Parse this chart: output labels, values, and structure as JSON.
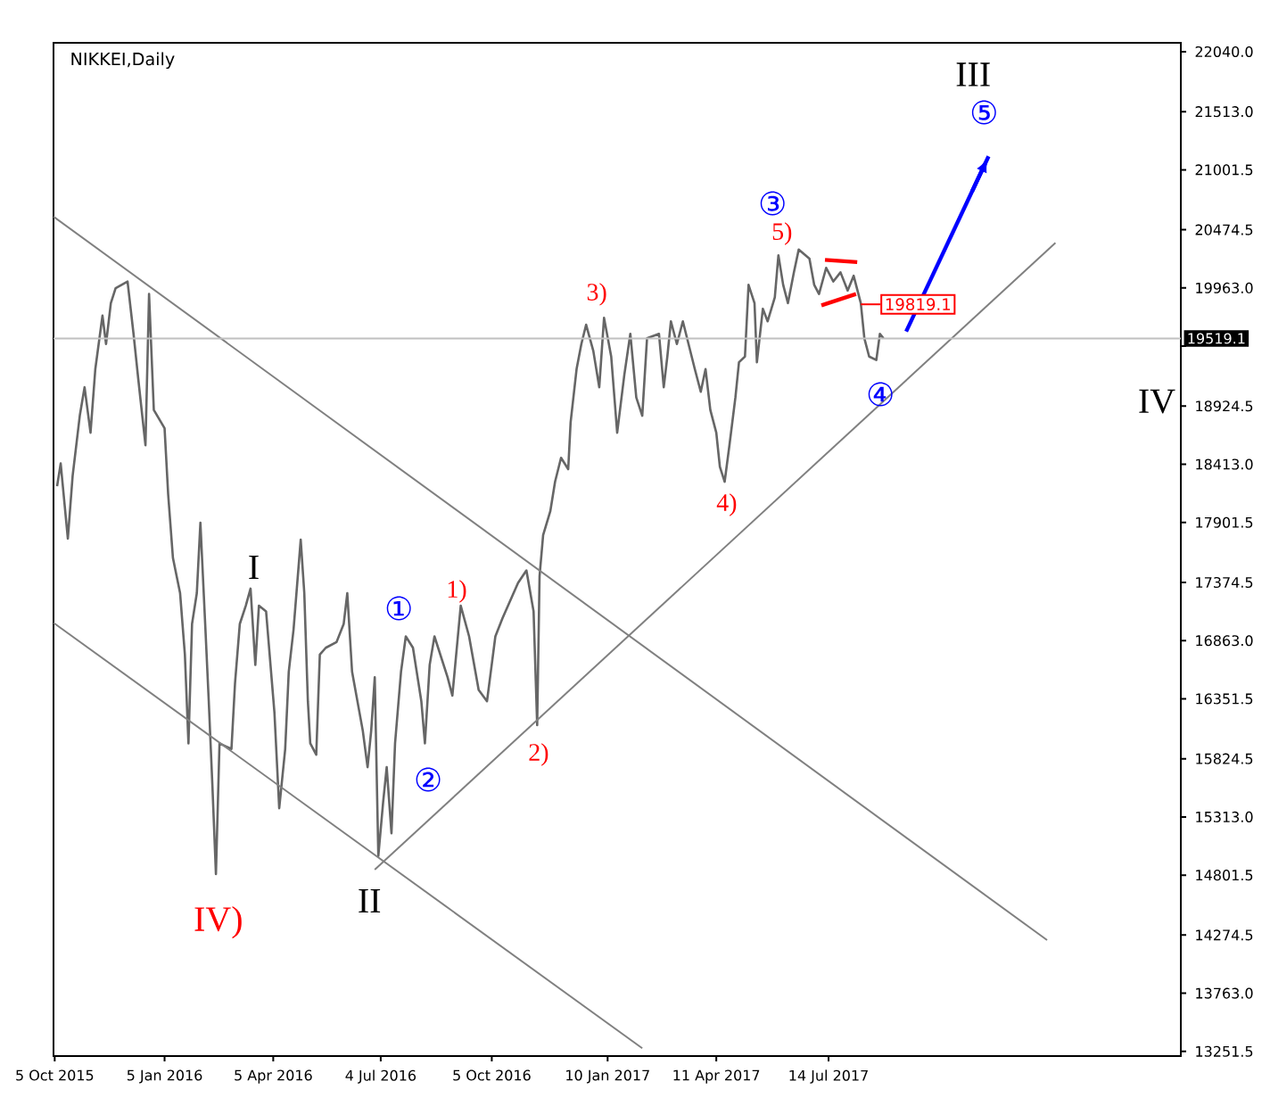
{
  "chart_data": {
    "type": "line",
    "title": "NIKKEI,Daily",
    "xlim": [
      "2015-10-04",
      "2018-05-05"
    ],
    "ylim": [
      13211,
      22118
    ],
    "xticks": [
      {
        "value": "2015-10-05",
        "label": "5 Oct 2015"
      },
      {
        "value": "2016-01-05",
        "label": "5 Jan 2016"
      },
      {
        "value": "2016-04-05",
        "label": "5 Apr 2016"
      },
      {
        "value": "2016-07-04",
        "label": "4 Jul 2016"
      },
      {
        "value": "2016-10-05",
        "label": "5 Oct 2016"
      },
      {
        "value": "2017-01-10",
        "label": "10 Jan 2017"
      },
      {
        "value": "2017-04-11",
        "label": "11 Apr 2017"
      },
      {
        "value": "2017-07-14",
        "label": "14 Jul 2017"
      }
    ],
    "yticks": [
      {
        "value": 22040,
        "label": "22040.0"
      },
      {
        "value": 21513,
        "label": "21513.0"
      },
      21001.5,
      20474.5,
      {
        "value": 19963,
        "label": "19963.0"
      },
      {
        "value": 19451.5,
        "label": null
      },
      18924.5,
      {
        "value": 18413,
        "label": "18413.0"
      },
      17901.5,
      17374.5,
      {
        "value": 16863,
        "label": "16863.0"
      },
      16351.5,
      15824.5,
      {
        "value": 15313,
        "label": "15313.0"
      },
      14801.5,
      14274.5,
      {
        "value": 13763,
        "label": "13763.0"
      },
      13251.5
    ],
    "series": [
      {
        "color": "#666666",
        "x": [
          "2015-10-07",
          "2015-10-10",
          "2015-10-16",
          "2015-10-20",
          "2015-10-26",
          "2015-10-30",
          "2015-11-04",
          "2015-11-08",
          "2015-11-14",
          "2015-11-17",
          "2015-11-21",
          "2015-11-25",
          "2015-12-05",
          "2015-12-10",
          "2015-12-14",
          "2015-12-20",
          "2015-12-23",
          "2015-12-27",
          "2016-01-05",
          "2016-01-08",
          "2016-01-12",
          "2016-01-18",
          "2016-01-22",
          "2016-01-25",
          "2016-01-28",
          "2016-02-01",
          "2016-02-04",
          "2016-02-08",
          "2016-02-11",
          "2016-02-14",
          "2016-02-17",
          "2016-02-20",
          "2016-03-01",
          "2016-03-04",
          "2016-03-08",
          "2016-03-13",
          "2016-03-17",
          "2016-03-21",
          "2016-03-24",
          "2016-03-30",
          "2016-04-06",
          "2016-04-10",
          "2016-04-15",
          "2016-04-18",
          "2016-04-22",
          "2016-04-28",
          "2016-05-01",
          "2016-05-04",
          "2016-05-06",
          "2016-05-11",
          "2016-05-14",
          "2016-05-19",
          "2016-05-28",
          "2016-06-03",
          "2016-06-06",
          "2016-06-10",
          "2016-06-19",
          "2016-06-23",
          "2016-06-26",
          "2016-06-29",
          "2016-07-02",
          "2016-07-06",
          "2016-07-09",
          "2016-07-13",
          "2016-07-16",
          "2016-07-21",
          "2016-07-25",
          "2016-07-31",
          "2016-08-07",
          "2016-08-10",
          "2016-08-14",
          "2016-08-18",
          "2016-08-29",
          "2016-09-02",
          "2016-09-09",
          "2016-09-16",
          "2016-09-24",
          "2016-10-01",
          "2016-10-08",
          "2016-10-14",
          "2016-10-27",
          "2016-11-03",
          "2016-11-09",
          "2016-11-12",
          "2016-11-14",
          "2016-11-17",
          "2016-11-23",
          "2016-11-27",
          "2016-12-02",
          "2016-12-08",
          "2016-12-10",
          "2016-12-15",
          "2016-12-19",
          "2016-12-23",
          "2016-12-29",
          "2017-01-03",
          "2017-01-07",
          "2017-01-13",
          "2017-01-18",
          "2017-01-24",
          "2017-01-29",
          "2017-02-03",
          "2017-02-08",
          "2017-02-12",
          "2017-02-22",
          "2017-02-26",
          "2017-03-01",
          "2017-03-04",
          "2017-03-09",
          "2017-03-14",
          "2017-03-24",
          "2017-03-29",
          "2017-04-02",
          "2017-04-06",
          "2017-04-11",
          "2017-04-14",
          "2017-04-18",
          "2017-04-22",
          "2017-04-27",
          "2017-04-30",
          "2017-05-05",
          "2017-05-08",
          "2017-05-13",
          "2017-05-15",
          "2017-05-20",
          "2017-05-24",
          "2017-05-30",
          "2017-06-02",
          "2017-06-06",
          "2017-06-10",
          "2017-06-15",
          "2017-06-19",
          "2017-06-28",
          "2017-07-02",
          "2017-07-06",
          "2017-07-12",
          "2017-07-18",
          "2017-07-24",
          "2017-07-30",
          "2017-08-04",
          "2017-08-10",
          "2017-08-13",
          "2017-08-17",
          "2017-08-23",
          "2017-08-26",
          "2017-08-29"
        ],
        "values": [
          18220,
          18420,
          17760,
          18310,
          18840,
          19090,
          18690,
          19250,
          19720,
          19470,
          19830,
          19960,
          20020,
          19560,
          19160,
          18580,
          19910,
          18890,
          18730,
          18150,
          17590,
          17280,
          16740,
          15960,
          17010,
          17280,
          17900,
          17010,
          16330,
          15600,
          14810,
          15960,
          15910,
          16490,
          17010,
          17170,
          17320,
          16650,
          17170,
          17120,
          16230,
          15390,
          15910,
          16590,
          16960,
          17750,
          17280,
          16330,
          15960,
          15860,
          16740,
          16800,
          16850,
          17010,
          17280,
          16590,
          16070,
          15750,
          16070,
          16540,
          14970,
          15440,
          15750,
          15170,
          15960,
          16590,
          16900,
          16800,
          16330,
          15960,
          16650,
          16900,
          16540,
          16380,
          17170,
          16900,
          16430,
          16330,
          16900,
          17060,
          17370,
          17480,
          17120,
          16120,
          17430,
          17790,
          18000,
          18260,
          18470,
          18370,
          18780,
          19250,
          19470,
          19640,
          19410,
          19090,
          19700,
          19360,
          18690,
          19200,
          19560,
          19000,
          18840,
          19520,
          19560,
          19090,
          19360,
          19670,
          19470,
          19670,
          19250,
          19050,
          19250,
          18890,
          18690,
          18390,
          18260,
          18580,
          19000,
          19310,
          19360,
          19990,
          19830,
          19310,
          19780,
          19670,
          19880,
          20250,
          19990,
          19830,
          20100,
          20300,
          20220,
          19990,
          19910,
          20140,
          20020,
          20100,
          19940,
          20070,
          19830,
          19520,
          19360,
          19330,
          19560,
          19520
        ]
      },
      {
        "color": "#808080",
        "x": [
          "2015-10-04",
          "2018-01-13"
        ],
        "values": [
          20590,
          14230
        ]
      },
      {
        "color": "#808080",
        "x": [
          "2015-10-04",
          "2017-02-08"
        ],
        "values": [
          17020,
          13280
        ]
      },
      {
        "color": "#808080",
        "x": [
          "2016-06-29",
          "2018-01-20"
        ],
        "values": [
          14850,
          20360
        ]
      },
      {
        "color": "#ff0000",
        "x": [
          "2017-07-11",
          "2017-08-07"
        ],
        "values": [
          20210,
          20190
        ]
      },
      {
        "color": "#ff0000",
        "x": [
          "2017-07-08",
          "2017-08-06"
        ],
        "values": [
          19810,
          19910
        ]
      },
      {
        "color": "#0000ff",
        "x": [
          "2017-09-17",
          "2017-11-25"
        ],
        "values": [
          19580,
          21120
        ]
      }
    ],
    "ref_lines": [
      {
        "axis": "y",
        "value": 19519.1,
        "label": "19519.1",
        "color": "#c0c0c0"
      }
    ],
    "annotations": [
      "III",
      "⑤",
      "③",
      "5)",
      "3)",
      "4)",
      "④",
      "IV",
      "I",
      "①",
      "1)",
      "②",
      "2)",
      "II",
      "IV)",
      {
        "text": "19819.1",
        "x": "2017-08-10",
        "y": 19819.1
      }
    ]
  }
}
